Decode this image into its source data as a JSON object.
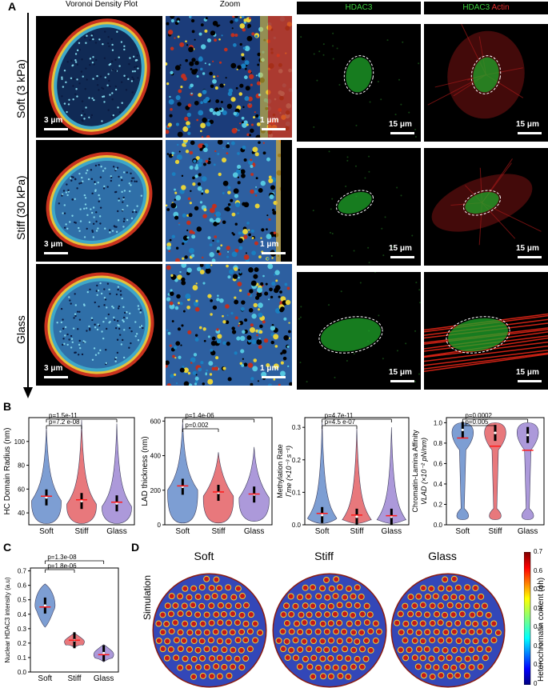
{
  "panel_letters": {
    "a": "A",
    "b": "B",
    "c": "C",
    "d": "D"
  },
  "panel_a": {
    "col_headers": {
      "voronoi": "Voronoi Density Plot",
      "zoom": "Zoom",
      "hdac3": "HDAC3",
      "hdac3_2": "HDAC3",
      "actin": "Actin"
    },
    "row_labels": [
      "Soft (3 kPa)",
      "Stiff (30 kPa)",
      "Glass"
    ],
    "scale_3um": "3 μm",
    "scale_1um": "1 μm",
    "scale_15um": "15 μm",
    "colors": {
      "hdac3_green": "#3ecf3e",
      "actin_red": "#e53030"
    }
  },
  "chart_data": [
    {
      "type": "violin",
      "id": "hc_domain",
      "ylabel": "HC Domain Radius (nm)",
      "categories": [
        "Soft",
        "Stiff",
        "Glass"
      ],
      "ylim": [
        30,
        120
      ],
      "yticks": [
        40,
        60,
        80,
        100
      ],
      "median": [
        53,
        50,
        48
      ],
      "mean": [
        54,
        51,
        49
      ],
      "annotations": [
        "p=7.2 e-08",
        "p=1.5e-11"
      ]
    },
    {
      "type": "violin",
      "id": "lad_thickness",
      "ylabel": "LAD thickness (nm)",
      "categories": [
        "Soft",
        "Stiff",
        "Glass"
      ],
      "ylim": [
        0,
        620
      ],
      "yticks": [
        0,
        200,
        400,
        600
      ],
      "median": [
        220,
        185,
        175
      ],
      "mean": [
        225,
        190,
        178
      ],
      "annotations": [
        "p=0.002",
        "p=1.4e-06"
      ]
    },
    {
      "type": "violin",
      "id": "methylation",
      "ylabel": "Methylation Rate",
      "ylabel2": "Γme (×10⁻³ s⁻¹)",
      "categories": [
        "Soft",
        "Stiff",
        "Glass"
      ],
      "ylim": [
        0,
        0.33
      ],
      "yticks": [
        0.0,
        0.1,
        0.2,
        0.3
      ],
      "median": [
        0.03,
        0.025,
        0.025
      ],
      "mean": [
        0.035,
        0.03,
        0.028
      ],
      "annotations": [
        "p=4.5 e-07",
        "p=4.7e-11"
      ]
    },
    {
      "type": "violin",
      "id": "affinity",
      "ylabel": "Chromatin-Lamina Affinity",
      "ylabel2": "VLAD (×10⁻² pN/nm)",
      "categories": [
        "Soft",
        "Stiff",
        "Glass"
      ],
      "ylim": [
        0,
        1.05
      ],
      "yticks": [
        0.0,
        0.2,
        0.4,
        0.6,
        0.8,
        1.0
      ],
      "median": [
        0.93,
        0.9,
        0.88
      ],
      "mean": [
        0.85,
        0.77,
        0.73
      ],
      "annotations": [
        "p=0.005",
        "p=0.0002"
      ]
    },
    {
      "type": "violin",
      "id": "hdac3_intensity",
      "ylabel": "Nuclear HDAC3 intensity (a.u)",
      "categories": [
        "Soft",
        "Stiff",
        "Glass"
      ],
      "ylim": [
        0,
        0.72
      ],
      "yticks": [
        0.0,
        0.1,
        0.2,
        0.3,
        0.4,
        0.5,
        0.6,
        0.7
      ],
      "median": [
        0.46,
        0.22,
        0.13
      ],
      "mean": [
        0.45,
        0.22,
        0.12
      ],
      "annotations": [
        "p=1.8e-06",
        "p=1.3e-08"
      ]
    }
  ],
  "panel_d": {
    "titles": [
      "Soft",
      "Stiff",
      "Glass"
    ],
    "row_label": "Simulation",
    "colorbar": {
      "label": "Heterochromatin content (ϕh)",
      "ticks": [
        "0.7",
        "0.6",
        "0.5",
        "0.4",
        "0.3",
        "0.2",
        "0.1",
        "0"
      ]
    }
  }
}
